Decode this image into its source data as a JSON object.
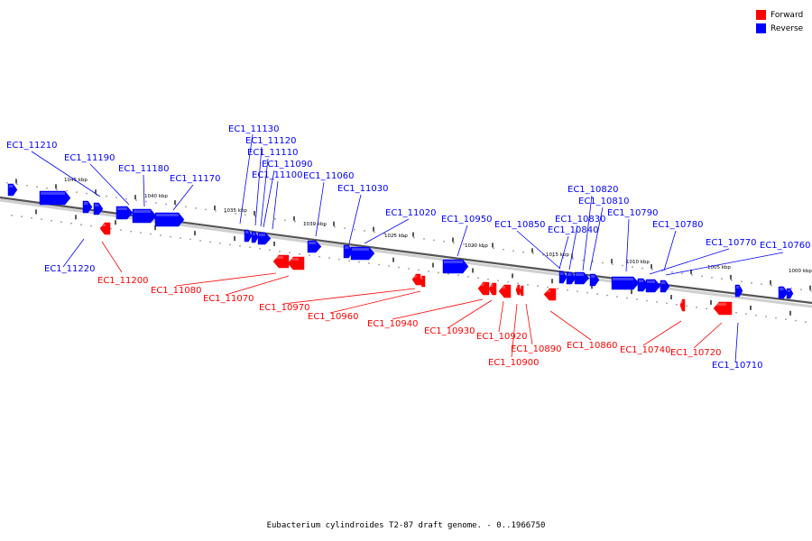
{
  "legend": {
    "forward_label": "Forward",
    "reverse_label": "Reverse",
    "forward_color": "#ff0000",
    "reverse_color": "#0000ff"
  },
  "caption": "Eubacterium cylindroides T2-87 draft genome. - 0..1966750",
  "ticks": [
    "1045 kbp",
    "1040 kbp",
    "1035 kbp",
    "1030 kbp",
    "1025 kbp",
    "1020 kbp",
    "1015 kbp",
    "1010 kbp",
    "1005 kbp",
    "1000 kbp"
  ],
  "genes_reverse": [
    "EC1_11210",
    "EC1_11190",
    "EC1_11180",
    "EC1_11170",
    "EC1_11130",
    "EC1_11120",
    "EC1_11110",
    "EC1_11090",
    "EC1_11100",
    "EC1_11060",
    "EC1_11030",
    "EC1_11020",
    "EC1_10950",
    "EC1_10850",
    "EC1_10820",
    "EC1_10810",
    "EC1_10830",
    "EC1_10840",
    "EC1_10790",
    "EC1_10780",
    "EC1_10770",
    "EC1_10760",
    "EC1_11220",
    "EC1_10710"
  ],
  "genes_forward": [
    "EC1_11200",
    "EC1_11080",
    "EC1_11070",
    "EC1_10970",
    "EC1_10960",
    "EC1_10940",
    "EC1_10930",
    "EC1_10920",
    "EC1_10890",
    "EC1_10900",
    "EC1_10860",
    "EC1_10740",
    "EC1_10720"
  ]
}
